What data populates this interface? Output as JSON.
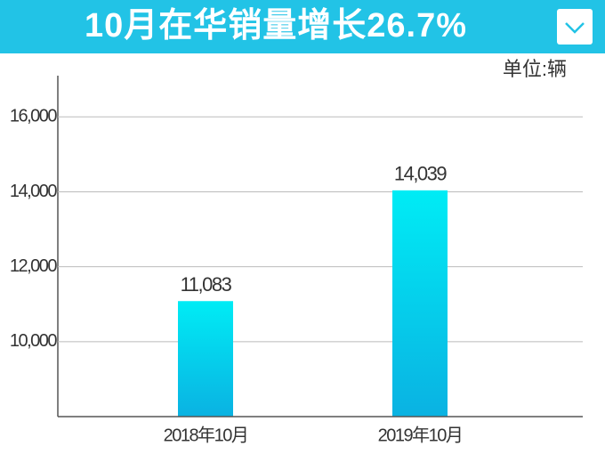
{
  "chart_data": {
    "type": "bar",
    "title": "10月在华销量增长26.7%",
    "unit_label": "单位:辆",
    "categories": [
      "2018年10月",
      "2019年10月"
    ],
    "values": [
      11083,
      14039
    ],
    "value_labels": [
      "11,083",
      "14,039"
    ],
    "color": "#00ecf5",
    "ylim": [
      8000,
      17100
    ],
    "yticks": [
      {
        "value": 10000,
        "label": "10,000"
      },
      {
        "value": 12000,
        "label": "12,000"
      },
      {
        "value": 14000,
        "label": "14,000"
      },
      {
        "value": 16000,
        "label": "16,000"
      }
    ],
    "grid": true
  }
}
